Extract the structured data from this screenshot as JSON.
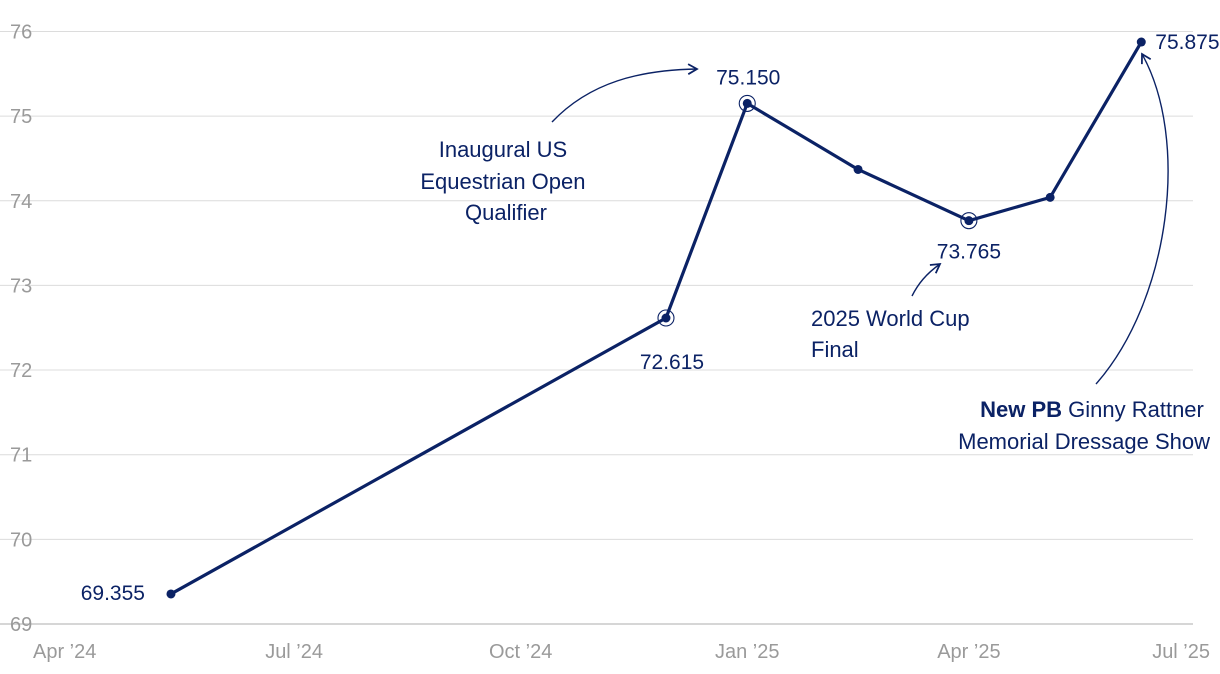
{
  "chart_data": {
    "type": "line",
    "x_axis": {
      "type": "date",
      "ticks": [
        {
          "date": "2024-04-01",
          "label": "Apr ’24"
        },
        {
          "date": "2024-07-01",
          "label": "Jul ’24"
        },
        {
          "date": "2024-10-01",
          "label": "Oct ’24"
        },
        {
          "date": "2025-01-01",
          "label": "Jan ’25"
        },
        {
          "date": "2025-04-01",
          "label": "Apr ’25"
        },
        {
          "date": "2025-07-01",
          "label": "Jul ’25"
        }
      ],
      "range": [
        "2024-04-01",
        "2025-07-01"
      ]
    },
    "y_axis": {
      "ticks": [
        69,
        70,
        71,
        72,
        73,
        74,
        75,
        76
      ],
      "range": [
        69,
        76.1
      ]
    },
    "grid": true,
    "series": [
      {
        "color": "#0b2265",
        "points": [
          {
            "date": "2024-05-12",
            "value": 69.355,
            "label": "69.355"
          },
          {
            "date": "2024-11-29",
            "value": 72.615,
            "label": "72.615",
            "ring": true
          },
          {
            "date": "2025-01-01",
            "value": 75.15,
            "label": "75.150",
            "ring": true
          },
          {
            "date": "2025-02-15",
            "value": 74.37
          },
          {
            "date": "2025-04-01",
            "value": 73.765,
            "label": "73.765",
            "ring": true
          },
          {
            "date": "2025-05-04",
            "value": 74.04
          },
          {
            "date": "2025-06-10",
            "value": 75.875,
            "label": "75.875"
          }
        ]
      }
    ],
    "annotations": [
      {
        "lines": [
          "Inaugural US",
          "Equestrian Open",
          "Qualifier"
        ],
        "target": "75.150"
      },
      {
        "lines": [
          "2025 World Cup",
          "Final"
        ],
        "target": "73.765"
      },
      {
        "bold": "New PB",
        "lines": [
          " Ginny Rattner",
          "Memorial Dressage Show"
        ],
        "target": "75.875"
      }
    ]
  }
}
